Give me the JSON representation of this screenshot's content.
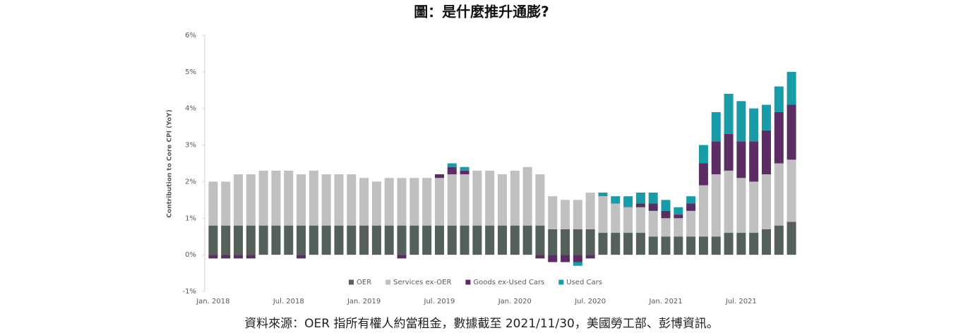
{
  "chart_data": {
    "type": "stacked_bar",
    "title": "圖：是什麼推升通膨?",
    "y_axis_label": "Contribution to Core CPI (YoY)",
    "source": "資料來源：OER 指所有權人約當租金，數據截至 2021/11/30，美國勞工部、彭博資訊。",
    "categories": [
      "Jan. 2018",
      null,
      null,
      null,
      null,
      null,
      "Jul. 2018",
      null,
      null,
      null,
      null,
      null,
      "Jan. 2019",
      null,
      null,
      null,
      null,
      null,
      "Jul. 2019",
      null,
      null,
      null,
      null,
      null,
      "Jan. 2020",
      null,
      null,
      null,
      null,
      null,
      "Jul. 2020",
      null,
      null,
      null,
      null,
      null,
      "Jan. 2021",
      null,
      null,
      null,
      null,
      null,
      "Jul. 2021",
      null,
      null,
      null,
      null
    ],
    "series": [
      {
        "name": "OER",
        "color": "#55605a",
        "values": [
          0.8,
          0.8,
          0.8,
          0.8,
          0.8,
          0.8,
          0.8,
          0.8,
          0.8,
          0.8,
          0.8,
          0.8,
          0.8,
          0.8,
          0.8,
          0.8,
          0.8,
          0.8,
          0.8,
          0.8,
          0.8,
          0.8,
          0.8,
          0.8,
          0.8,
          0.8,
          0.8,
          0.7,
          0.7,
          0.7,
          0.7,
          0.6,
          0.6,
          0.6,
          0.6,
          0.5,
          0.5,
          0.5,
          0.5,
          0.5,
          0.5,
          0.6,
          0.6,
          0.6,
          0.7,
          0.8,
          0.9
        ]
      },
      {
        "name": "Services ex-OER",
        "color": "#c0c0c0",
        "values": [
          1.2,
          1.2,
          1.4,
          1.4,
          1.5,
          1.5,
          1.5,
          1.4,
          1.5,
          1.4,
          1.4,
          1.4,
          1.3,
          1.2,
          1.3,
          1.3,
          1.3,
          1.3,
          1.3,
          1.4,
          1.4,
          1.5,
          1.5,
          1.4,
          1.5,
          1.6,
          1.4,
          0.9,
          0.8,
          0.8,
          1.0,
          1.0,
          0.8,
          0.7,
          0.7,
          0.7,
          0.5,
          0.5,
          0.7,
          1.4,
          1.7,
          1.7,
          1.5,
          1.4,
          1.5,
          1.7,
          1.7
        ]
      },
      {
        "name": "Goods ex-Used Cars",
        "color": "#5c2d62",
        "values": [
          -0.1,
          -0.1,
          -0.1,
          -0.1,
          0,
          0,
          0,
          -0.1,
          0,
          0,
          0,
          0,
          0,
          0,
          0,
          -0.1,
          0,
          0,
          0.1,
          0.2,
          0.1,
          0,
          0,
          0,
          0,
          0,
          -0.1,
          -0.2,
          -0.2,
          -0.2,
          -0.1,
          0,
          0,
          0,
          0.1,
          0.2,
          0.2,
          0.1,
          0.2,
          0.6,
          0.9,
          1.0,
          1.0,
          1.1,
          1.2,
          1.4,
          1.5
        ]
      },
      {
        "name": "Used Cars",
        "color": "#1a9ba8",
        "values": [
          0,
          0,
          0,
          0,
          0,
          0,
          0,
          0,
          0,
          0,
          0,
          0,
          0,
          0,
          0,
          0,
          0,
          0,
          0,
          0.1,
          0.1,
          0,
          0,
          0,
          0,
          0,
          0,
          0,
          0,
          -0.1,
          0,
          0.1,
          0.2,
          0.3,
          0.3,
          0.3,
          0.3,
          0.2,
          0.2,
          0.5,
          0.8,
          1.1,
          1.1,
          0.9,
          0.7,
          0.7,
          0.9
        ]
      }
    ],
    "ylim": [
      -1,
      6
    ],
    "yticks": [
      {
        "value": -1,
        "label": "-1%"
      },
      {
        "value": 0,
        "label": "0%"
      },
      {
        "value": 1,
        "label": "1%"
      },
      {
        "value": 2,
        "label": "2%"
      },
      {
        "value": 3,
        "label": "3%"
      },
      {
        "value": 4,
        "label": "4%"
      },
      {
        "value": 5,
        "label": "5%"
      },
      {
        "value": 6,
        "label": "6%"
      }
    ],
    "legend": "bottom"
  }
}
